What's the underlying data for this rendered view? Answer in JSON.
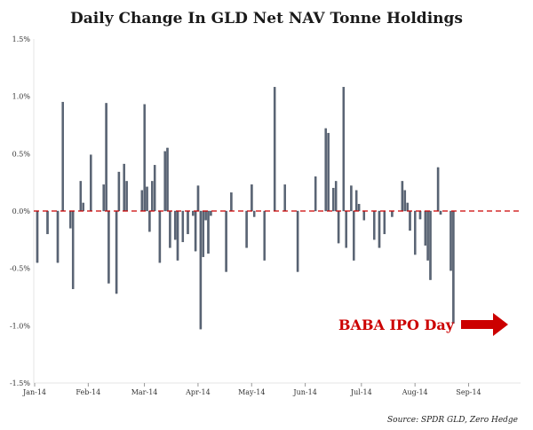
{
  "colors": {
    "bar": "#5a6576",
    "bar_dark": "#3b4452",
    "zero_line": "#cc0000",
    "annotation": "#cc0000"
  },
  "chart_data": {
    "type": "bar",
    "title": "Daily Change In GLD Net NAV Tonne Holdings",
    "xlabel": "",
    "ylabel": "",
    "ylim": [
      -1.5,
      1.5
    ],
    "y_ticks": [
      "1.5%",
      "1.0%",
      "0.5%",
      "0.0%",
      "-0.5%",
      "-1.0%",
      "-1.5%"
    ],
    "y_tick_values": [
      1.5,
      1.0,
      0.5,
      0.0,
      -0.5,
      -1.0,
      -1.5
    ],
    "x_tick_labels": [
      "Jan-14",
      "Feb-14",
      "Mar-14",
      "Apr-14",
      "May-14",
      "Jun-14",
      "Jul-14",
      "Aug-14",
      "Sep-14"
    ],
    "x_tick_positions": [
      0,
      21,
      43,
      64,
      85,
      106,
      128,
      149,
      170
    ],
    "x_range": [
      0,
      190
    ],
    "grid": false,
    "zero_line": "dashed",
    "series": [
      {
        "unit": "%",
        "points": [
          [
            1,
            -0.45
          ],
          [
            5,
            -0.2
          ],
          [
            9,
            -0.45
          ],
          [
            11,
            0.95
          ],
          [
            14,
            -0.15
          ],
          [
            15,
            -0.68
          ],
          [
            18,
            0.26
          ],
          [
            19,
            0.07
          ],
          [
            22,
            0.49
          ],
          [
            25,
            0.0
          ],
          [
            27,
            0.23
          ],
          [
            28,
            0.94
          ],
          [
            29,
            -0.63
          ],
          [
            32,
            -0.72
          ],
          [
            33,
            0.34
          ],
          [
            35,
            0.41
          ],
          [
            36,
            0.26
          ],
          [
            42,
            0.18
          ],
          [
            43,
            0.93
          ],
          [
            44,
            0.21
          ],
          [
            45,
            -0.18
          ],
          [
            46,
            0.26
          ],
          [
            47,
            0.4
          ],
          [
            49,
            -0.45
          ],
          [
            51,
            0.52
          ],
          [
            52,
            0.55
          ],
          [
            53,
            -0.32
          ],
          [
            55,
            -0.25
          ],
          [
            56,
            -0.43
          ],
          [
            58,
            -0.27
          ],
          [
            60,
            -0.2
          ],
          [
            62,
            -0.04
          ],
          [
            63,
            -0.35
          ],
          [
            64,
            0.22
          ],
          [
            65,
            -1.03
          ],
          [
            66,
            -0.4
          ],
          [
            67,
            -0.08
          ],
          [
            68,
            -0.37
          ],
          [
            69,
            -0.04
          ],
          [
            75,
            -0.53
          ],
          [
            77,
            0.16
          ],
          [
            80,
            0.0
          ],
          [
            83,
            -0.32
          ],
          [
            85,
            0.23
          ],
          [
            86,
            -0.05
          ],
          [
            89,
            0.0
          ],
          [
            90,
            -0.43
          ],
          [
            92,
            0.0
          ],
          [
            94,
            1.08
          ],
          [
            98,
            0.23
          ],
          [
            103,
            -0.53
          ],
          [
            108,
            0.0
          ],
          [
            110,
            0.3
          ],
          [
            114,
            0.72
          ],
          [
            115,
            0.68
          ],
          [
            117,
            0.2
          ],
          [
            118,
            0.26
          ],
          [
            119,
            -0.28
          ],
          [
            120,
            0.0
          ],
          [
            121,
            1.08
          ],
          [
            122,
            -0.32
          ],
          [
            124,
            0.22
          ],
          [
            125,
            -0.43
          ],
          [
            126,
            0.18
          ],
          [
            127,
            0.06
          ],
          [
            129,
            -0.08
          ],
          [
            133,
            -0.25
          ],
          [
            135,
            -0.32
          ],
          [
            137,
            -0.2
          ],
          [
            140,
            -0.05
          ],
          [
            142,
            0.0
          ],
          [
            144,
            0.26
          ],
          [
            145,
            0.18
          ],
          [
            146,
            0.07
          ],
          [
            147,
            -0.17
          ],
          [
            149,
            -0.38
          ],
          [
            151,
            -0.07
          ],
          [
            153,
            -0.3
          ],
          [
            154,
            -0.43
          ],
          [
            155,
            -0.6
          ],
          [
            158,
            0.38
          ],
          [
            159,
            -0.03
          ],
          [
            163,
            -0.52
          ],
          [
            164,
            -0.98
          ]
        ]
      }
    ],
    "annotation": "BABA IPO Day",
    "source": "Source: SPDR GLD, Zero Hedge"
  }
}
